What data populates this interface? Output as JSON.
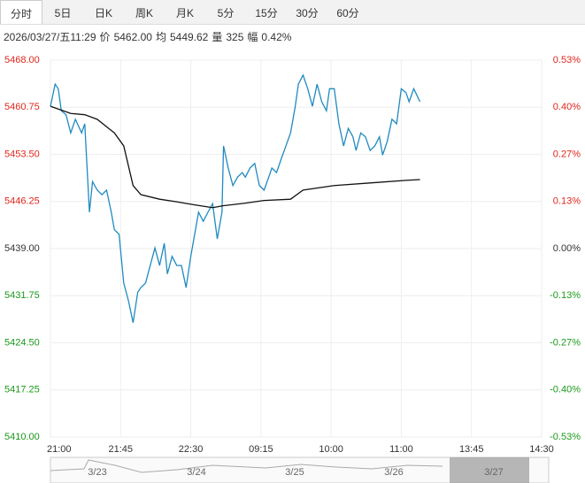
{
  "tabs": [
    "分时",
    "5日",
    "日K",
    "周K",
    "月K",
    "5分",
    "15分",
    "30分",
    "60分"
  ],
  "info": {
    "time": "2026/03/27/五11:29",
    "fields": [
      [
        "价",
        "5462.00"
      ],
      [
        "均",
        "5449.62"
      ],
      [
        "量",
        "325"
      ],
      [
        "幅",
        "0.42%"
      ]
    ]
  },
  "navigator": {
    "labels": [
      "3/23",
      "3/24",
      "3/25",
      "3/26",
      "3/27"
    ]
  },
  "chart_data": {
    "type": "line",
    "x": [
      0,
      3,
      5,
      7,
      10,
      13,
      16,
      20,
      22,
      25,
      27,
      30,
      33,
      36,
      39,
      41,
      44,
      47,
      50,
      53,
      56,
      58,
      61,
      64,
      67,
      70,
      73,
      75,
      78,
      81,
      84,
      87,
      90,
      93,
      95,
      98,
      101,
      104,
      107,
      110,
      111,
      114,
      117,
      120,
      123,
      125,
      128,
      131,
      134,
      137,
      140,
      142,
      145,
      148,
      151,
      154,
      157,
      159,
      162,
      165,
      168,
      171,
      174,
      177,
      179,
      182,
      185,
      188,
      191,
      194,
      196,
      199,
      202,
      205,
      208,
      211,
      213,
      216,
      219,
      222,
      225,
      228,
      230,
      233,
      237
    ],
    "series": [
      {
        "color": "#1f8ac0",
        "values": [
          5460.9,
          5464.3,
          5463.6,
          5460.2,
          5459.6,
          5456.8,
          5458.9,
          5456.8,
          5458.2,
          5444.6,
          5449.3,
          5448.0,
          5447.3,
          5448.0,
          5444.6,
          5441.9,
          5441.2,
          5433.7,
          5431.0,
          5427.6,
          5432.3,
          5433.0,
          5433.7,
          5436.4,
          5439.1,
          5436.4,
          5439.8,
          5435.1,
          5437.8,
          5436.4,
          5436.4,
          5433.0,
          5437.8,
          5441.9,
          5444.6,
          5443.2,
          5444.6,
          5445.9,
          5440.5,
          5444.6,
          5454.8,
          5451.4,
          5448.7,
          5450.0,
          5450.7,
          5450.0,
          5451.4,
          5452.1,
          5448.7,
          5448.0,
          5450.0,
          5451.4,
          5450.7,
          5452.8,
          5454.8,
          5456.8,
          5460.9,
          5464.3,
          5465.7,
          5463.6,
          5460.9,
          5464.3,
          5461.6,
          5460.2,
          5463.6,
          5463.6,
          5458.2,
          5454.8,
          5457.5,
          5456.2,
          5454.1,
          5456.8,
          5456.2,
          5454.1,
          5454.8,
          5456.2,
          5453.4,
          5455.5,
          5458.9,
          5458.2,
          5463.6,
          5463.0,
          5461.6,
          5463.6,
          5461.6
        ]
      },
      {
        "color": "#111111",
        "values": [
          5460.9,
          null,
          null,
          null,
          null,
          5459.8,
          null,
          null,
          5459.6,
          null,
          null,
          5458.9,
          null,
          null,
          null,
          5456.8,
          null,
          5454.8,
          null,
          5448.7,
          null,
          5447.3,
          null,
          null,
          null,
          5446.6,
          null,
          null,
          null,
          5446.2,
          null,
          null,
          null,
          5445.7,
          null,
          null,
          null,
          5445.3,
          null,
          null,
          5445.6,
          null,
          null,
          null,
          null,
          5446.0,
          null,
          null,
          null,
          5446.4,
          null,
          null,
          null,
          null,
          null,
          5446.6,
          null,
          null,
          5448.0,
          null,
          null,
          null,
          null,
          null,
          null,
          5448.7,
          null,
          null,
          null,
          null,
          null,
          null,
          null,
          5449.1,
          null,
          null,
          null,
          null,
          null,
          null,
          null,
          5449.5,
          null,
          null,
          5449.62
        ]
      }
    ],
    "xlim": [
      0,
      315
    ],
    "xticks": [
      {
        "value": 0,
        "label": "21:00"
      },
      {
        "value": 45,
        "label": "21:45"
      },
      {
        "value": 90,
        "label": "22:30"
      },
      {
        "value": 135,
        "label": "09:15"
      },
      {
        "value": 180,
        "label": "10:00"
      },
      {
        "value": 225,
        "label": "11:00"
      },
      {
        "value": 270,
        "label": "13:45"
      },
      {
        "value": 315,
        "label": "14:30"
      }
    ],
    "ylim": [
      5410,
      5468
    ],
    "yticks": [
      {
        "value": 5468,
        "label": "5468.00"
      },
      {
        "value": 5460.75,
        "label": "5460.75"
      },
      {
        "value": 5453.5,
        "label": "5453.50"
      },
      {
        "value": 5446.25,
        "label": "5446.25"
      },
      {
        "value": 5439,
        "label": "5439.00"
      },
      {
        "value": 5431.75,
        "label": "5431.75"
      },
      {
        "value": 5424.5,
        "label": "5424.50"
      },
      {
        "value": 5417.25,
        "label": "5417.25"
      },
      {
        "value": 5410,
        "label": "5410.00"
      }
    ],
    "y2lim": [
      -0.5333,
      0.5333
    ],
    "y2ticks": [
      {
        "value": 0.5333,
        "label": "0.53%"
      },
      {
        "value": 0.4,
        "label": "0.40%"
      },
      {
        "value": 0.2667,
        "label": "0.27%"
      },
      {
        "value": 0.1333,
        "label": "0.13%"
      },
      {
        "value": 0,
        "label": "0.00%"
      },
      {
        "value": -0.1333,
        "label": "-0.13%"
      },
      {
        "value": -0.2667,
        "label": "-0.27%"
      },
      {
        "value": -0.4,
        "label": "-0.40%"
      },
      {
        "value": -0.5333,
        "label": "-0.53%"
      }
    ],
    "up_color": "#e0261b",
    "down_color": "#1a9a1a",
    "flat_color": "#333333",
    "grid": true
  }
}
